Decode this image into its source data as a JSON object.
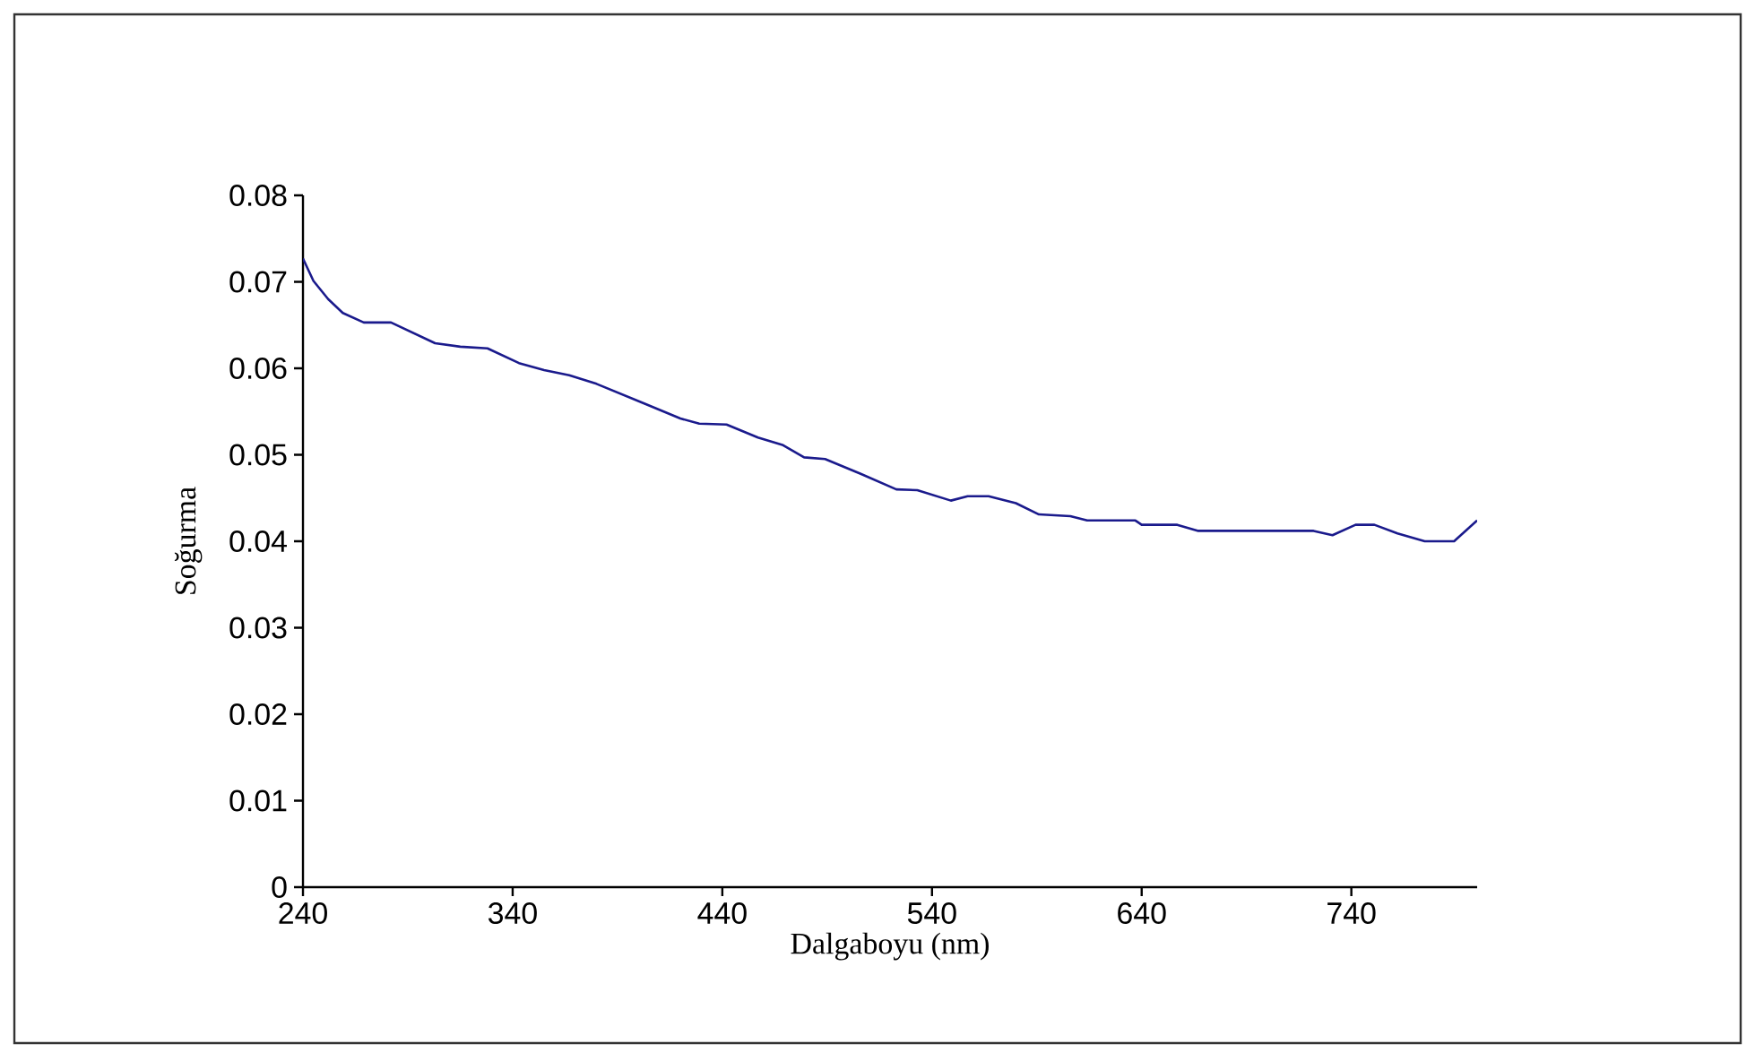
{
  "chart_data": {
    "type": "line",
    "xlabel": "Dalgaboyu (nm)",
    "ylabel": "Soğurma",
    "xlim": [
      240,
      800
    ],
    "ylim": [
      0,
      0.08
    ],
    "xticks": [
      240,
      340,
      440,
      540,
      640,
      740
    ],
    "yticks": [
      0,
      0.01,
      0.02,
      0.03,
      0.04,
      0.05,
      0.06,
      0.07,
      0.08
    ],
    "grid": false,
    "series": [
      {
        "color": "#1a1a8c",
        "x": [
          240,
          245,
          252,
          259,
          269,
          282,
          303,
          315,
          328,
          343,
          355,
          367,
          380,
          403,
          420,
          429,
          442,
          457,
          469,
          479,
          489,
          506,
          523,
          533,
          549,
          557,
          567,
          580,
          591,
          606,
          614,
          637,
          640,
          657,
          667,
          722,
          731,
          742,
          751,
          762,
          775,
          789,
          800
        ],
        "values": [
          0.0727,
          0.0701,
          0.068,
          0.0664,
          0.0653,
          0.0653,
          0.0629,
          0.0625,
          0.0623,
          0.0606,
          0.0598,
          0.0592,
          0.0582,
          0.0559,
          0.0542,
          0.0536,
          0.0535,
          0.052,
          0.0511,
          0.0497,
          0.0495,
          0.0478,
          0.046,
          0.0459,
          0.0447,
          0.0452,
          0.0452,
          0.0444,
          0.0431,
          0.0429,
          0.0424,
          0.0424,
          0.0419,
          0.0419,
          0.0412,
          0.0412,
          0.0407,
          0.0419,
          0.0419,
          0.0409,
          0.04,
          0.04,
          0.0424
        ]
      }
    ]
  }
}
